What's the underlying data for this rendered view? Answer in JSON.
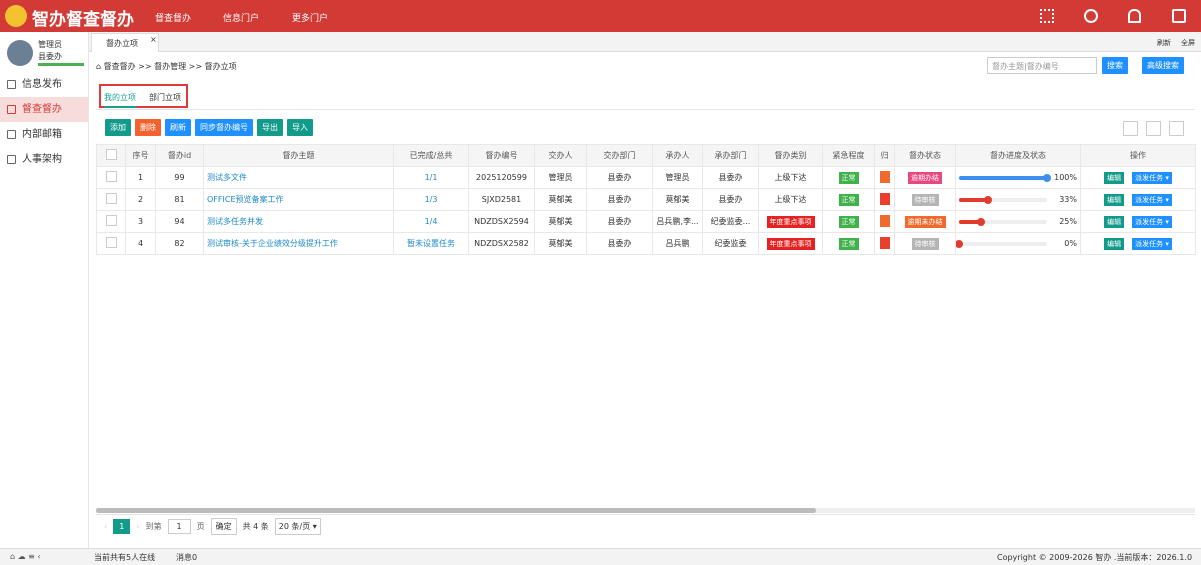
{
  "header": {
    "title": "智办督查督办",
    "nav": [
      "督查督办",
      "信息门户",
      "更多门户"
    ]
  },
  "user": {
    "name": "管理员",
    "dept": "县委办"
  },
  "menu": [
    "信息发布",
    "督查督办",
    "内部邮箱",
    "人事架构"
  ],
  "tab": {
    "label": "督办立项",
    "refresh": "刷新",
    "fullscreen": "全屏"
  },
  "breadcrumb": "督查督办 >> 督办管理 >> 督办立项",
  "search": {
    "placeholder": "督办主题|督办编号",
    "button": "搜索",
    "advanced": "高级搜索"
  },
  "subtabs": [
    "我的立项",
    "部门立项"
  ],
  "toolbar": [
    "添加",
    "删除",
    "刷新",
    "同步督办编号",
    "导出",
    "导入"
  ],
  "table": {
    "columns": [
      "序号",
      "督办id",
      "督办主题",
      "已完成/总共",
      "督办编号",
      "交办人",
      "交办部门",
      "承办人",
      "承办部门",
      "督办类别",
      "紧急程度",
      "归",
      "督办状态",
      "督办进度及状态",
      "操作"
    ],
    "rows": [
      {
        "no": "1",
        "id": "99",
        "subject": "测试多文件",
        "done": "1/1",
        "code": "2025120599",
        "assigner": "管理员",
        "assign_dept": "县委办",
        "handler": "管理员",
        "handle_dept": "县委办",
        "category": "上级下达",
        "urgency": "正常",
        "status": "逾期办结",
        "status_color": "#e8477f",
        "progress": {
          "value": 100,
          "label": "100%"
        },
        "bar_color": "#3b8fef",
        "edit": "编辑",
        "dispatch": "派发任务"
      },
      {
        "no": "2",
        "id": "81",
        "subject": "OFFICE预览备案工作",
        "done": "1/3",
        "code": "SJXD2581",
        "assigner": "莫郁美",
        "assign_dept": "县委办",
        "handler": "莫郁美",
        "handle_dept": "县委办",
        "category": "上级下达",
        "urgency": "正常",
        "status": "待审核",
        "status_color": "#b5b5b5",
        "progress": {
          "value": 33,
          "label": "33%"
        },
        "bar_color": "#e23b2e",
        "edit": "编辑",
        "dispatch": "派发任务"
      },
      {
        "no": "3",
        "id": "94",
        "subject": "测试多任务并发",
        "done": "1/4",
        "code": "NDZDSX2594",
        "assigner": "莫郁美",
        "assign_dept": "县委办",
        "handler": "吕兵鹏,李...",
        "handle_dept": "纪委监委...",
        "category": "年度重点事项",
        "urgency": "正常",
        "status": "逾期未办结",
        "status_color": "#f06a2e",
        "progress": {
          "value": 25,
          "label": "25%"
        },
        "bar_color": "#e23b2e",
        "edit": "编辑",
        "dispatch": "派发任务"
      },
      {
        "no": "4",
        "id": "82",
        "subject": "测试审核-关于企业绩效分级提升工作",
        "done": "暂未设置任务",
        "code": "NDZDSX2582",
        "assigner": "莫郁美",
        "assign_dept": "县委办",
        "handler": "吕兵鹏",
        "handle_dept": "纪委监委",
        "category": "年度重点事项",
        "urgency": "正常",
        "status": "待审核",
        "status_color": "#b5b5b5",
        "progress": {
          "value": 0,
          "label": "0%"
        },
        "bar_color": "#e23b2e",
        "edit": "编辑",
        "dispatch": "派发任务"
      }
    ]
  },
  "pager": {
    "page": "1",
    "goto": "到第",
    "input": "1",
    "page_unit": "页",
    "confirm": "确定",
    "total": "共 4 条",
    "size": "20 条/页"
  },
  "footer": {
    "online": "当前共有5人在线",
    "messages": "消息0",
    "copyright": "Copyright © 2009-2026 智办 .当前版本：2026.1.0"
  }
}
